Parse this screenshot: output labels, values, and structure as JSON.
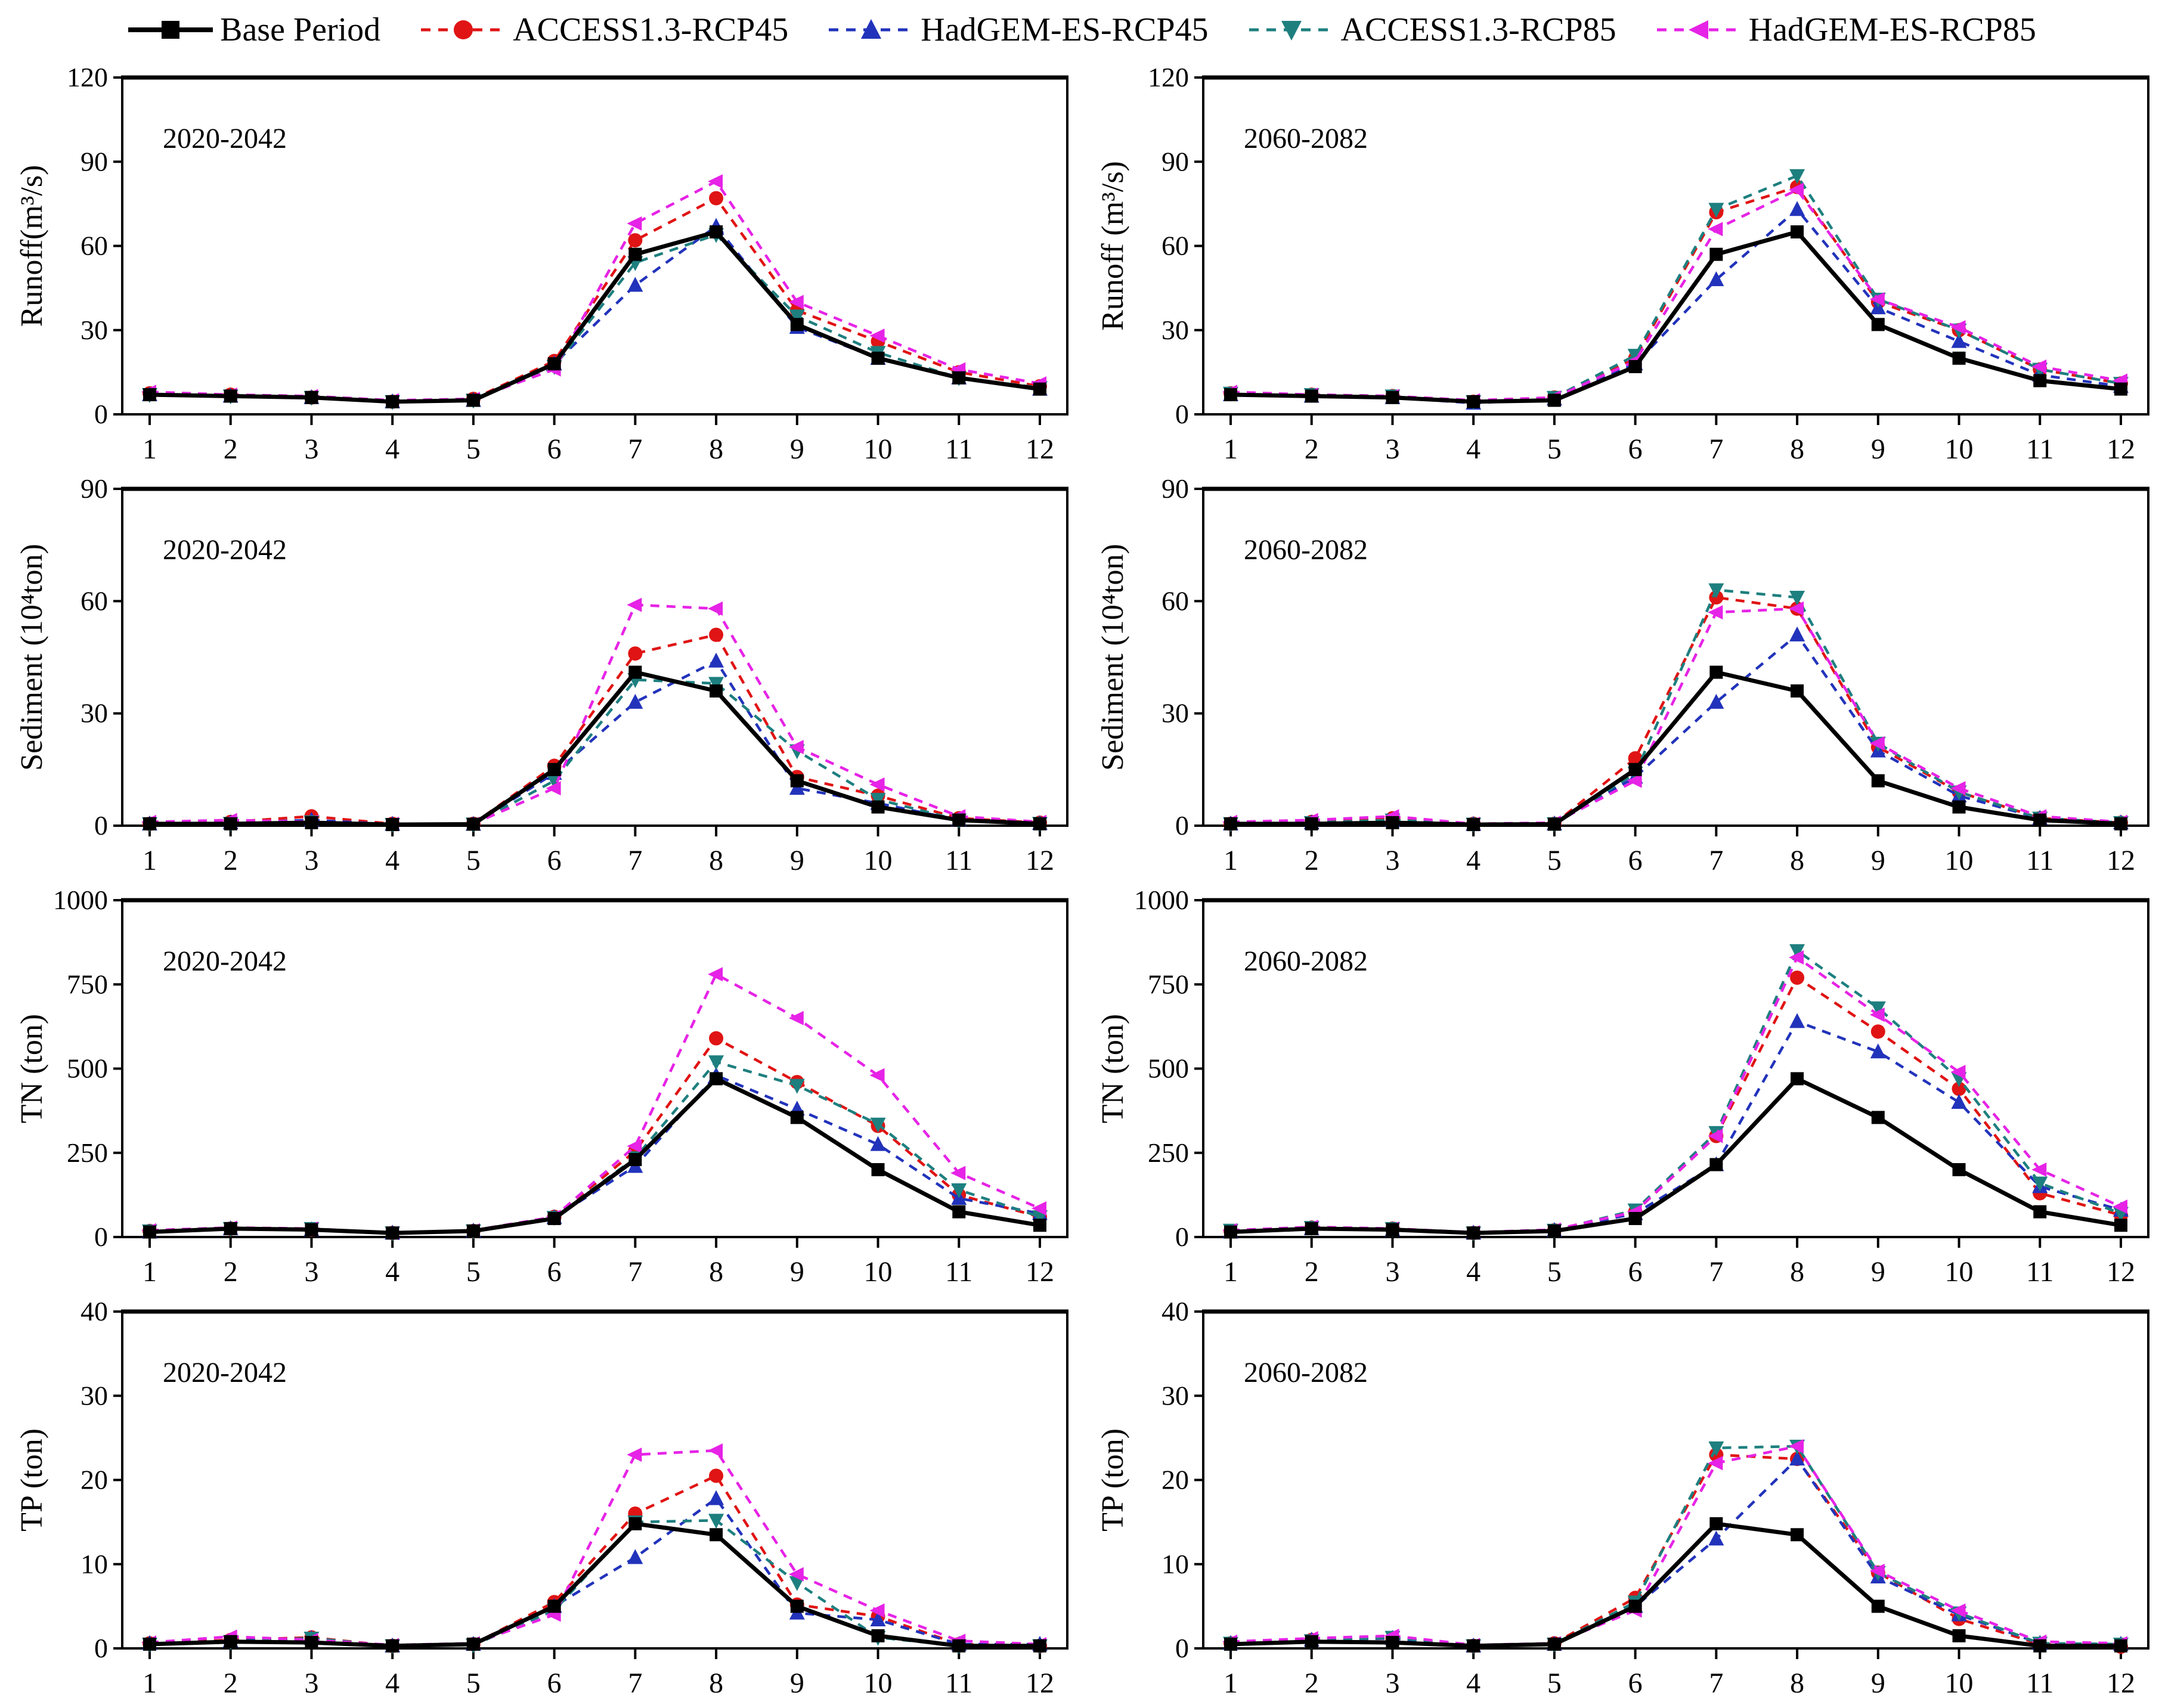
{
  "legend": {
    "items": [
      {
        "label": "Base Period",
        "color": "#000000",
        "marker": "square",
        "line": "solid"
      },
      {
        "label": "ACCESS1.3-RCP45",
        "color": "#e01414",
        "marker": "circle",
        "line": "dashed"
      },
      {
        "label": "HadGEM-ES-RCP45",
        "color": "#2233bb",
        "marker": "triangle-up",
        "line": "dashed"
      },
      {
        "label": "ACCESS1.3-RCP85",
        "color": "#1e7f7f",
        "marker": "triangle-down",
        "line": "dashed"
      },
      {
        "label": "HadGEM-ES-RCP85",
        "color": "#e623e6",
        "marker": "triangle-left",
        "line": "dashed"
      }
    ]
  },
  "chart_data": [
    {
      "type": "line",
      "period": "2020-2042",
      "ylabel": "Runoff(m³/s)",
      "xlabel": "",
      "ylim": [
        0,
        120
      ],
      "yticks": [
        0,
        30,
        60,
        90,
        120
      ],
      "x": [
        1,
        2,
        3,
        4,
        5,
        6,
        7,
        8,
        9,
        10,
        11,
        12
      ],
      "series": [
        {
          "name": "Base Period",
          "color": "#000000",
          "marker": "square",
          "line": "solid",
          "values": [
            7,
            6.5,
            6,
            4.5,
            5,
            18,
            57,
            65,
            32,
            20,
            13,
            9
          ]
        },
        {
          "name": "ACCESS1.3-RCP45",
          "color": "#e01414",
          "marker": "circle",
          "line": "dashed",
          "values": [
            7.5,
            7,
            6,
            4.5,
            5.5,
            19,
            62,
            77,
            37,
            26,
            15,
            10
          ]
        },
        {
          "name": "HadGEM-ES-RCP45",
          "color": "#2233bb",
          "marker": "triangle-up",
          "line": "dashed",
          "values": [
            7,
            6.5,
            6,
            4.5,
            5,
            18,
            46,
            67,
            31,
            20,
            13,
            9
          ]
        },
        {
          "name": "ACCESS1.3-RCP85",
          "color": "#1e7f7f",
          "marker": "triangle-down",
          "line": "dashed",
          "values": [
            7,
            6.5,
            6,
            4.5,
            5,
            17,
            54,
            64,
            35,
            22,
            13,
            9.5
          ]
        },
        {
          "name": "HadGEM-ES-RCP85",
          "color": "#e623e6",
          "marker": "triangle-left",
          "line": "dashed",
          "values": [
            8,
            7,
            6.5,
            5,
            5.5,
            16,
            68,
            83,
            40,
            28,
            16,
            11
          ]
        }
      ]
    },
    {
      "type": "line",
      "period": "2060-2082",
      "ylabel": "Runoff (m³/s)",
      "xlabel": "",
      "ylim": [
        0,
        120
      ],
      "yticks": [
        0,
        30,
        60,
        90,
        120
      ],
      "x": [
        1,
        2,
        3,
        4,
        5,
        6,
        7,
        8,
        9,
        10,
        11,
        12
      ],
      "series": [
        {
          "name": "Base Period",
          "color": "#000000",
          "marker": "square",
          "line": "solid",
          "values": [
            7,
            6.5,
            6,
            4.5,
            5,
            17,
            57,
            65,
            32,
            20,
            12,
            9
          ]
        },
        {
          "name": "ACCESS1.3-RCP45",
          "color": "#e01414",
          "marker": "circle",
          "line": "dashed",
          "values": [
            7.5,
            7,
            6.5,
            4.5,
            6,
            20,
            72,
            81,
            40,
            30,
            16,
            11
          ]
        },
        {
          "name": "HadGEM-ES-RCP45",
          "color": "#2233bb",
          "marker": "triangle-up",
          "line": "dashed",
          "values": [
            7,
            6.5,
            6,
            4,
            5.5,
            18,
            48,
            73,
            38,
            26,
            14,
            10
          ]
        },
        {
          "name": "ACCESS1.3-RCP85",
          "color": "#1e7f7f",
          "marker": "triangle-down",
          "line": "dashed",
          "values": [
            7.5,
            7,
            6.5,
            4.5,
            6,
            21,
            73,
            85,
            41,
            30,
            16,
            11
          ]
        },
        {
          "name": "HadGEM-ES-RCP85",
          "color": "#e623e6",
          "marker": "triangle-left",
          "line": "dashed",
          "values": [
            8,
            7,
            6.5,
            5,
            6,
            19,
            66,
            80,
            41,
            31,
            17,
            12
          ]
        }
      ]
    },
    {
      "type": "line",
      "period": "2020-2042",
      "ylabel": "Sediment (10⁴ton)",
      "xlabel": "",
      "ylim": [
        0,
        90
      ],
      "yticks": [
        0,
        30,
        60,
        90
      ],
      "x": [
        1,
        2,
        3,
        4,
        5,
        6,
        7,
        8,
        9,
        10,
        11,
        12
      ],
      "series": [
        {
          "name": "Base Period",
          "color": "#000000",
          "marker": "square",
          "line": "solid",
          "values": [
            0.5,
            0.5,
            0.8,
            0.3,
            0.4,
            15,
            41,
            36,
            12,
            5,
            1.5,
            0.5
          ]
        },
        {
          "name": "ACCESS1.3-RCP45",
          "color": "#e01414",
          "marker": "circle",
          "line": "dashed",
          "values": [
            0.5,
            1,
            2.5,
            0.5,
            0.5,
            16,
            46,
            51,
            13,
            8,
            2,
            0.8
          ]
        },
        {
          "name": "HadGEM-ES-RCP45",
          "color": "#2233bb",
          "marker": "triangle-up",
          "line": "dashed",
          "values": [
            0.5,
            0.8,
            1.5,
            0.4,
            0.4,
            14,
            33,
            44,
            10,
            6,
            1.5,
            0.6
          ]
        },
        {
          "name": "ACCESS1.3-RCP85",
          "color": "#1e7f7f",
          "marker": "triangle-down",
          "line": "dashed",
          "values": [
            0.5,
            0.6,
            1,
            0.3,
            0.4,
            12,
            39,
            38,
            20,
            7,
            1.5,
            0.6
          ]
        },
        {
          "name": "HadGEM-ES-RCP85",
          "color": "#e623e6",
          "marker": "triangle-left",
          "line": "dashed",
          "values": [
            1,
            1.5,
            1,
            0.5,
            0.5,
            10,
            59,
            58,
            21,
            11,
            2.5,
            1
          ]
        }
      ]
    },
    {
      "type": "line",
      "period": "2060-2082",
      "ylabel": "Sediment (10⁴ton)",
      "xlabel": "",
      "ylim": [
        0,
        90
      ],
      "yticks": [
        0,
        30,
        60,
        90
      ],
      "x": [
        1,
        2,
        3,
        4,
        5,
        6,
        7,
        8,
        9,
        10,
        11,
        12
      ],
      "series": [
        {
          "name": "Base Period",
          "color": "#000000",
          "marker": "square",
          "line": "solid",
          "values": [
            0.5,
            0.5,
            0.8,
            0.3,
            0.4,
            15,
            41,
            36,
            12,
            5,
            1.5,
            0.5
          ]
        },
        {
          "name": "ACCESS1.3-RCP45",
          "color": "#e01414",
          "marker": "circle",
          "line": "dashed",
          "values": [
            0.5,
            1,
            2,
            0.5,
            0.5,
            18,
            61,
            58,
            21,
            9,
            2,
            0.8
          ]
        },
        {
          "name": "HadGEM-ES-RCP45",
          "color": "#2233bb",
          "marker": "triangle-up",
          "line": "dashed",
          "values": [
            0.5,
            0.8,
            1.5,
            0.4,
            0.5,
            13,
            33,
            51,
            20,
            8,
            2,
            0.8
          ]
        },
        {
          "name": "ACCESS1.3-RCP85",
          "color": "#1e7f7f",
          "marker": "triangle-down",
          "line": "dashed",
          "values": [
            0.5,
            0.8,
            1.5,
            0.4,
            0.5,
            14,
            63,
            61,
            22,
            9,
            2,
            0.8
          ]
        },
        {
          "name": "HadGEM-ES-RCP85",
          "color": "#e623e6",
          "marker": "triangle-left",
          "line": "dashed",
          "values": [
            1,
            1.5,
            2.5,
            0.5,
            0.8,
            12,
            57,
            58,
            22,
            10,
            2.5,
            1
          ]
        }
      ]
    },
    {
      "type": "line",
      "period": "2020-2042",
      "ylabel": "TN (ton)",
      "xlabel": "",
      "ylim": [
        0,
        1000
      ],
      "yticks": [
        0,
        250,
        500,
        750,
        1000
      ],
      "x": [
        1,
        2,
        3,
        4,
        5,
        6,
        7,
        8,
        9,
        10,
        11,
        12
      ],
      "series": [
        {
          "name": "Base Period",
          "color": "#000000",
          "marker": "square",
          "line": "solid",
          "values": [
            15,
            25,
            22,
            12,
            18,
            55,
            230,
            470,
            355,
            200,
            75,
            35
          ]
        },
        {
          "name": "ACCESS1.3-RCP45",
          "color": "#e01414",
          "marker": "circle",
          "line": "dashed",
          "values": [
            18,
            25,
            22,
            12,
            18,
            60,
            255,
            590,
            460,
            330,
            125,
            60
          ]
        },
        {
          "name": "HadGEM-ES-RCP45",
          "color": "#2233bb",
          "marker": "triangle-up",
          "line": "dashed",
          "values": [
            15,
            25,
            22,
            12,
            18,
            58,
            210,
            480,
            380,
            275,
            115,
            70
          ]
        },
        {
          "name": "ACCESS1.3-RCP85",
          "color": "#1e7f7f",
          "marker": "triangle-down",
          "line": "dashed",
          "values": [
            18,
            25,
            25,
            12,
            18,
            58,
            235,
            520,
            450,
            335,
            140,
            60
          ]
        },
        {
          "name": "HadGEM-ES-RCP85",
          "color": "#e623e6",
          "marker": "triangle-left",
          "line": "dashed",
          "values": [
            20,
            28,
            25,
            12,
            20,
            60,
            270,
            780,
            650,
            480,
            190,
            85
          ]
        }
      ]
    },
    {
      "type": "line",
      "period": "2060-2082",
      "ylabel": "TN (ton)",
      "xlabel": "",
      "ylim": [
        0,
        1000
      ],
      "yticks": [
        0,
        250,
        500,
        750,
        1000
      ],
      "x": [
        1,
        2,
        3,
        4,
        5,
        6,
        7,
        8,
        9,
        10,
        11,
        12
      ],
      "series": [
        {
          "name": "Base Period",
          "color": "#000000",
          "marker": "square",
          "line": "solid",
          "values": [
            15,
            25,
            22,
            12,
            18,
            55,
            215,
            470,
            355,
            200,
            75,
            35
          ]
        },
        {
          "name": "ACCESS1.3-RCP45",
          "color": "#e01414",
          "marker": "circle",
          "line": "dashed",
          "values": [
            18,
            28,
            25,
            12,
            20,
            75,
            300,
            770,
            610,
            440,
            130,
            65
          ]
        },
        {
          "name": "HadGEM-ES-RCP45",
          "color": "#2233bb",
          "marker": "triangle-up",
          "line": "dashed",
          "values": [
            15,
            25,
            22,
            12,
            20,
            70,
            215,
            640,
            550,
            400,
            150,
            80
          ]
        },
        {
          "name": "ACCESS1.3-RCP85",
          "color": "#1e7f7f",
          "marker": "triangle-down",
          "line": "dashed",
          "values": [
            20,
            28,
            25,
            12,
            20,
            80,
            310,
            850,
            680,
            470,
            160,
            70
          ]
        },
        {
          "name": "HadGEM-ES-RCP85",
          "color": "#e623e6",
          "marker": "triangle-left",
          "line": "dashed",
          "values": [
            20,
            30,
            25,
            14,
            22,
            75,
            300,
            830,
            660,
            490,
            200,
            90
          ]
        }
      ]
    },
    {
      "type": "line",
      "period": "2020-2042",
      "ylabel": "TP (ton)",
      "xlabel": "",
      "ylim": [
        0,
        40
      ],
      "yticks": [
        0,
        10,
        20,
        30,
        40
      ],
      "x": [
        1,
        2,
        3,
        4,
        5,
        6,
        7,
        8,
        9,
        10,
        11,
        12
      ],
      "series": [
        {
          "name": "Base Period",
          "color": "#000000",
          "marker": "square",
          "line": "solid",
          "values": [
            0.5,
            0.8,
            0.7,
            0.3,
            0.5,
            5,
            14.8,
            13.5,
            5,
            1.5,
            0.3,
            0.3
          ]
        },
        {
          "name": "ACCESS1.3-RCP45",
          "color": "#e01414",
          "marker": "circle",
          "line": "dashed",
          "values": [
            0.6,
            1,
            1.3,
            0.3,
            0.5,
            5.5,
            16,
            20.5,
            5.2,
            3.8,
            0.5,
            0.3
          ]
        },
        {
          "name": "HadGEM-ES-RCP45",
          "color": "#2233bb",
          "marker": "triangle-up",
          "line": "dashed",
          "values": [
            0.6,
            0.9,
            1.2,
            0.3,
            0.5,
            5,
            10.8,
            17.8,
            4.2,
            3.4,
            0.5,
            0.5
          ]
        },
        {
          "name": "ACCESS1.3-RCP85",
          "color": "#1e7f7f",
          "marker": "triangle-down",
          "line": "dashed",
          "values": [
            0.5,
            0.8,
            1.2,
            0.3,
            0.4,
            4.5,
            15,
            15.2,
            7.8,
            1.3,
            0.3,
            0.3
          ]
        },
        {
          "name": "HadGEM-ES-RCP85",
          "color": "#e623e6",
          "marker": "triangle-left",
          "line": "dashed",
          "values": [
            0.7,
            1.4,
            1,
            0.4,
            0.6,
            4,
            23,
            23.5,
            8.8,
            4.5,
            0.9,
            0.5
          ]
        }
      ]
    },
    {
      "type": "line",
      "period": "2060-2082",
      "ylabel": "TP (ton)",
      "xlabel": "",
      "ylim": [
        0,
        40
      ],
      "yticks": [
        0,
        10,
        20,
        30,
        40
      ],
      "x": [
        1,
        2,
        3,
        4,
        5,
        6,
        7,
        8,
        9,
        10,
        11,
        12
      ],
      "series": [
        {
          "name": "Base Period",
          "color": "#000000",
          "marker": "square",
          "line": "solid",
          "values": [
            0.5,
            0.8,
            0.7,
            0.3,
            0.5,
            5,
            14.8,
            13.5,
            5,
            1.5,
            0.3,
            0.3
          ]
        },
        {
          "name": "ACCESS1.3-RCP45",
          "color": "#e01414",
          "marker": "circle",
          "line": "dashed",
          "values": [
            0.6,
            1,
            1.2,
            0.3,
            0.6,
            6,
            23,
            22.5,
            9,
            3.5,
            0.5,
            0.2
          ]
        },
        {
          "name": "HadGEM-ES-RCP45",
          "color": "#2233bb",
          "marker": "triangle-up",
          "line": "dashed",
          "values": [
            0.6,
            1,
            1.2,
            0.3,
            0.5,
            5,
            13,
            22.5,
            8.5,
            4,
            0.6,
            0.5
          ]
        },
        {
          "name": "ACCESS1.3-RCP85",
          "color": "#1e7f7f",
          "marker": "triangle-down",
          "line": "dashed",
          "values": [
            0.6,
            0.9,
            1.3,
            0.3,
            0.5,
            5.5,
            23.8,
            24,
            9,
            4.2,
            0.6,
            0.5
          ]
        },
        {
          "name": "HadGEM-ES-RCP85",
          "color": "#e623e6",
          "marker": "triangle-left",
          "line": "dashed",
          "values": [
            0.8,
            1.2,
            1.5,
            0.4,
            0.6,
            4.5,
            22,
            24,
            9.2,
            4.5,
            0.8,
            0.6
          ]
        }
      ]
    }
  ]
}
